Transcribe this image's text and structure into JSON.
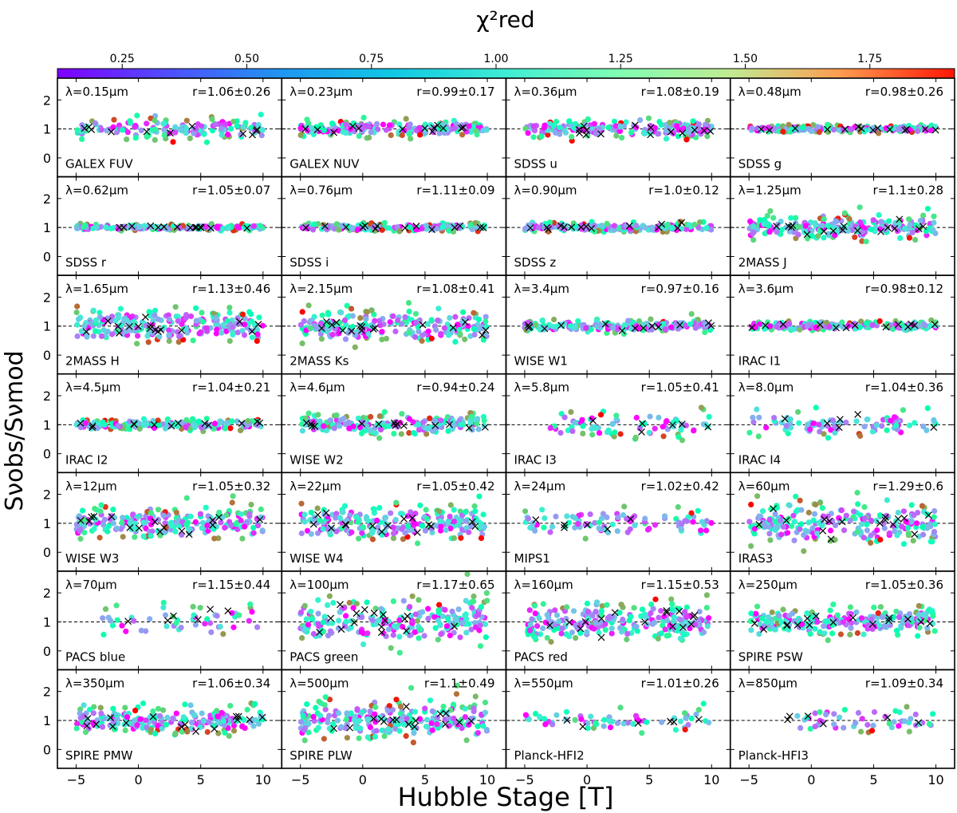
{
  "figure": {
    "colorbar_label": "χ²red",
    "colorbar_ticks": [
      "0.25",
      "0.50",
      "0.75",
      "1.00",
      "1.25",
      "1.50",
      "1.75"
    ],
    "xlabel": "Hubble Stage [T]",
    "ylabel": "Sνobs/Sνmod"
  },
  "chart_data": {
    "type": "scatter",
    "grid_layout": {
      "rows": 7,
      "cols": 4
    },
    "xlim": [
      -6.5,
      11.5
    ],
    "ylim": [
      -0.65,
      2.75
    ],
    "xticks": [
      -5,
      0,
      5,
      10
    ],
    "yticks": [
      0,
      1,
      2
    ],
    "reference_line": {
      "y": 1,
      "style": "dashed"
    },
    "colorbar": {
      "label": "χ²red",
      "range": [
        0.12,
        1.92
      ],
      "ticks": [
        0.25,
        0.5,
        0.75,
        1.0,
        1.25,
        1.5,
        1.75
      ],
      "colormap": "rainbow"
    },
    "marker_legend": "x markers indicate flagged/outlier galaxies",
    "panels": [
      {
        "name": "GALEX FUV",
        "lambda": "λ=0.15μm",
        "r": "r=1.06±0.26",
        "x_range": [
          -5,
          10
        ],
        "n": 150,
        "spread": 0.25
      },
      {
        "name": "GALEX NUV",
        "lambda": "λ=0.23μm",
        "r": "r=0.99±0.17",
        "x_range": [
          -5,
          10
        ],
        "n": 180,
        "spread": 0.17
      },
      {
        "name": "SDSS u",
        "lambda": "λ=0.36μm",
        "r": "r=1.08±0.19",
        "x_range": [
          -5,
          10
        ],
        "n": 200,
        "spread": 0.2
      },
      {
        "name": "SDSS g",
        "lambda": "λ=0.48μm",
        "r": "r=0.98±0.26",
        "x_range": [
          -5,
          10
        ],
        "n": 200,
        "spread": 0.08
      },
      {
        "name": "SDSS r",
        "lambda": "λ=0.62μm",
        "r": "r=1.05±0.07",
        "x_range": [
          -5,
          10
        ],
        "n": 200,
        "spread": 0.06
      },
      {
        "name": "SDSS i",
        "lambda": "λ=0.76μm",
        "r": "r=1.11±0.09",
        "x_range": [
          -5,
          10
        ],
        "n": 200,
        "spread": 0.08
      },
      {
        "name": "SDSS z",
        "lambda": "λ=0.90μm",
        "r": "r=1.0±0.12",
        "x_range": [
          -5,
          10
        ],
        "n": 200,
        "spread": 0.1
      },
      {
        "name": "2MASS J",
        "lambda": "λ=1.25μm",
        "r": "r=1.1±0.28",
        "x_range": [
          -5,
          10
        ],
        "n": 220,
        "spread": 0.28
      },
      {
        "name": "2MASS H",
        "lambda": "λ=1.65μm",
        "r": "r=1.13±0.46",
        "x_range": [
          -5,
          10
        ],
        "n": 220,
        "spread": 0.4
      },
      {
        "name": "2MASS Ks",
        "lambda": "λ=2.15μm",
        "r": "r=1.08±0.41",
        "x_range": [
          -5,
          10
        ],
        "n": 220,
        "spread": 0.38
      },
      {
        "name": "WISE W1",
        "lambda": "λ=3.4μm",
        "r": "r=0.97±0.16",
        "x_range": [
          -5,
          10
        ],
        "n": 200,
        "spread": 0.14
      },
      {
        "name": "IRAC I1",
        "lambda": "λ=3.6μm",
        "r": "r=0.98±0.12",
        "x_range": [
          -5,
          10
        ],
        "n": 180,
        "spread": 0.1
      },
      {
        "name": "IRAC I2",
        "lambda": "λ=4.5μm",
        "r": "r=1.04±0.21",
        "x_range": [
          -5,
          10
        ],
        "n": 180,
        "spread": 0.12
      },
      {
        "name": "WISE W2",
        "lambda": "λ=4.6μm",
        "r": "r=0.94±0.24",
        "x_range": [
          -5,
          10
        ],
        "n": 200,
        "spread": 0.22
      },
      {
        "name": "IRAC I3",
        "lambda": "λ=5.8μm",
        "r": "r=1.05±0.41",
        "x_range": [
          -3,
          10
        ],
        "n": 80,
        "spread": 0.3
      },
      {
        "name": "IRAC I4",
        "lambda": "λ=8.0μm",
        "r": "r=1.04±0.36",
        "x_range": [
          -5,
          10
        ],
        "n": 90,
        "spread": 0.3
      },
      {
        "name": "WISE W3",
        "lambda": "λ=12μm",
        "r": "r=1.05±0.32",
        "x_range": [
          -5,
          10
        ],
        "n": 220,
        "spread": 0.35
      },
      {
        "name": "WISE W4",
        "lambda": "λ=22μm",
        "r": "r=1.05±0.42",
        "x_range": [
          -5,
          10
        ],
        "n": 220,
        "spread": 0.4
      },
      {
        "name": "MIPS1",
        "lambda": "λ=24μm",
        "r": "r=1.02±0.42",
        "x_range": [
          -5,
          10
        ],
        "n": 90,
        "spread": 0.35
      },
      {
        "name": "IRAS3",
        "lambda": "λ=60μm",
        "r": "r=1.29±0.6",
        "x_range": [
          -5,
          10
        ],
        "n": 220,
        "spread": 0.5
      },
      {
        "name": "PACS blue",
        "lambda": "λ=70μm",
        "r": "r=1.15±0.44",
        "x_range": [
          -3,
          10
        ],
        "n": 50,
        "spread": 0.4
      },
      {
        "name": "PACS green",
        "lambda": "λ=100μm",
        "r": "r=1.17±0.65",
        "x_range": [
          -5,
          10
        ],
        "n": 220,
        "spread": 0.55
      },
      {
        "name": "PACS red",
        "lambda": "λ=160μm",
        "r": "r=1.15±0.53",
        "x_range": [
          -5,
          10
        ],
        "n": 220,
        "spread": 0.45
      },
      {
        "name": "SPIRE PSW",
        "lambda": "λ=250μm",
        "r": "r=1.05±0.36",
        "x_range": [
          -5,
          10
        ],
        "n": 220,
        "spread": 0.3
      },
      {
        "name": "SPIRE PMW",
        "lambda": "λ=350μm",
        "r": "r=1.06±0.34",
        "x_range": [
          -5,
          10
        ],
        "n": 220,
        "spread": 0.3
      },
      {
        "name": "SPIRE PLW",
        "lambda": "λ=500μm",
        "r": "r=1.1±0.49",
        "x_range": [
          -5,
          10
        ],
        "n": 220,
        "spread": 0.45
      },
      {
        "name": "Planck-HFI2",
        "lambda": "λ=550μm",
        "r": "r=1.01±0.26",
        "x_range": [
          -5,
          10
        ],
        "n": 60,
        "spread": 0.25
      },
      {
        "name": "Planck-HFI3",
        "lambda": "λ=850μm",
        "r": "r=1.09±0.34",
        "x_range": [
          -2,
          10
        ],
        "n": 50,
        "spread": 0.3
      }
    ]
  }
}
